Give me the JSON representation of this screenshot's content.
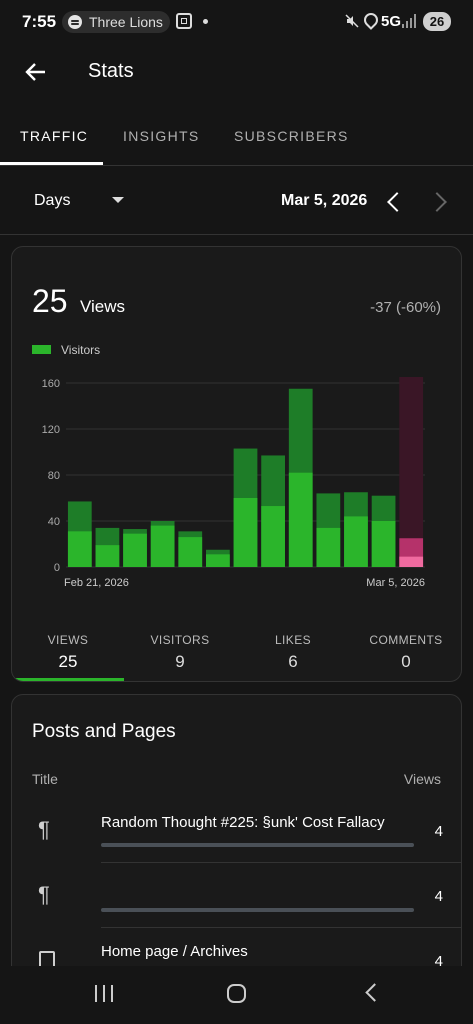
{
  "status_bar": {
    "time": "7:55",
    "media_app": "Three Lions",
    "network": "5G",
    "battery": "26"
  },
  "header": {
    "title": "Stats"
  },
  "tabs": [
    {
      "label": "TRAFFIC",
      "active": true
    },
    {
      "label": "INSIGHTS",
      "active": false
    },
    {
      "label": "SUBSCRIBERS",
      "active": false
    }
  ],
  "period": {
    "granularity": "Days",
    "date": "Mar 5, 2026"
  },
  "summary": {
    "value": "25",
    "unit": "Views",
    "change": "-37 (-60%)"
  },
  "chart_data": {
    "type": "bar",
    "legend": [
      "Visitors"
    ],
    "x_start_label": "Feb 21, 2026",
    "x_end_label": "Mar 5, 2026",
    "yticks": [
      "160",
      "120",
      "80",
      "40",
      "0"
    ],
    "ylim": [
      0,
      160
    ],
    "series": [
      {
        "name": "Views",
        "values": [
          57,
          34,
          33,
          40,
          31,
          15,
          103,
          97,
          155,
          64,
          65,
          62,
          25
        ]
      },
      {
        "name": "Visitors",
        "values": [
          31,
          19,
          29,
          36,
          26,
          11,
          60,
          53,
          82,
          34,
          44,
          40,
          9
        ]
      }
    ],
    "selected_index": 12
  },
  "stats": [
    {
      "label": "VIEWS",
      "value": "25",
      "active": true
    },
    {
      "label": "VISITORS",
      "value": "9",
      "active": false
    },
    {
      "label": "LIKES",
      "value": "6",
      "active": false
    },
    {
      "label": "COMMENTS",
      "value": "0",
      "active": false
    }
  ],
  "posts": {
    "title": "Posts and Pages",
    "col_title": "Title",
    "col_views": "Views",
    "rows": [
      {
        "icon": "¶",
        "title": "Random Thought #225: §unk' Cost Fallacy",
        "views": "4",
        "bar": 1.0
      },
      {
        "icon": "¶",
        "title": "",
        "views": "4",
        "bar": 1.0
      },
      {
        "icon": "page",
        "title": "Home page / Archives",
        "views": "4",
        "bar": 1.0
      }
    ]
  }
}
